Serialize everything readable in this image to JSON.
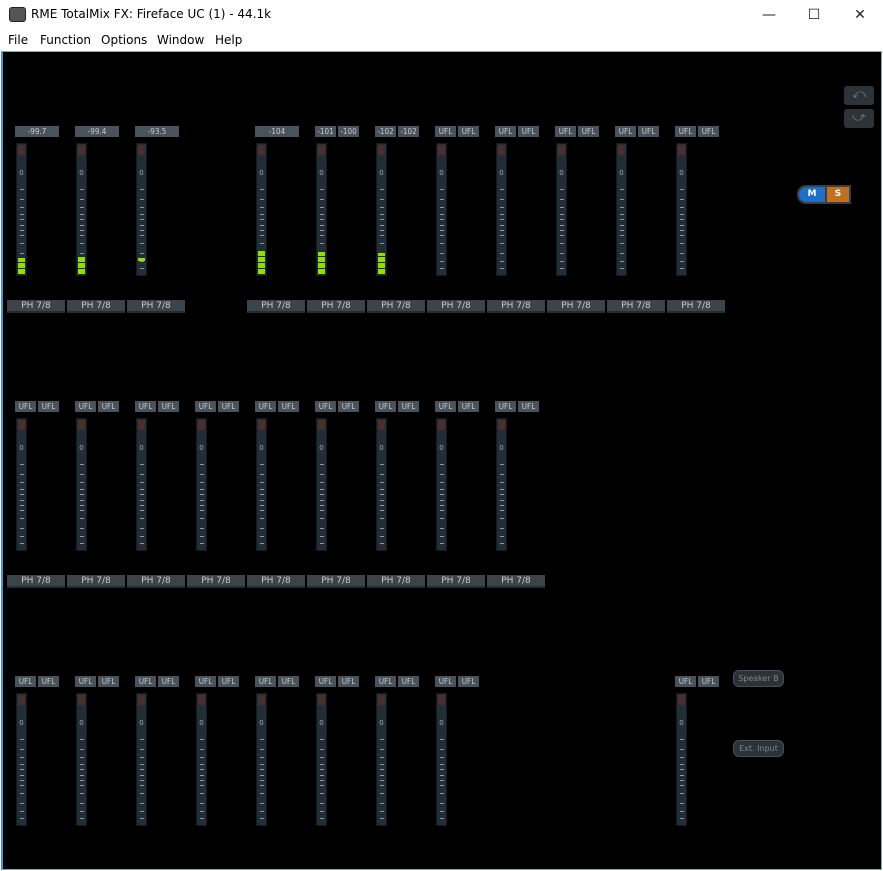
{
  "window": {
    "title": "RME TotalMix FX: Fireface UC (1) - 44.1k",
    "minimize": "—",
    "maximize": "☐",
    "close": "✕"
  },
  "menu": [
    "File",
    "Function",
    "Options",
    "Window",
    "Help"
  ],
  "meter_zero_label": "0",
  "meter_level_color": "#8fe000",
  "rows": [
    {
      "channels": [
        {
          "slot": 0,
          "labels": [
            "-99.7"
          ],
          "level": 0.12,
          "button": "PH 7/8"
        },
        {
          "slot": 1,
          "labels": [
            "-99.4"
          ],
          "level": 0.14,
          "button": "PH 7/8"
        },
        {
          "slot": 2,
          "labels": [
            "-93.5"
          ],
          "level": 0.12,
          "level_floor": 0.1,
          "button": "PH 7/8"
        },
        {
          "slot": 4,
          "labels": [
            "-104"
          ],
          "level": 0.18,
          "button": "PH 7/8"
        },
        {
          "slot": 5,
          "labels": [
            "-101",
            "-100"
          ],
          "level": 0.17,
          "button": "PH 7/8"
        },
        {
          "slot": 6,
          "labels": [
            "-102",
            "-102"
          ],
          "level": 0.16,
          "button": "PH 7/8"
        },
        {
          "slot": 7,
          "labels": [
            "UFL",
            "UFL"
          ],
          "level": 0,
          "button": "PH 7/8"
        },
        {
          "slot": 8,
          "labels": [
            "UFL",
            "UFL"
          ],
          "level": 0,
          "button": "PH 7/8"
        },
        {
          "slot": 9,
          "labels": [
            "UFL",
            "UFL"
          ],
          "level": 0,
          "button": "PH 7/8"
        },
        {
          "slot": 10,
          "labels": [
            "UFL",
            "UFL"
          ],
          "level": 0,
          "button": "PH 7/8"
        },
        {
          "slot": 11,
          "labels": [
            "UFL",
            "UFL"
          ],
          "level": 0,
          "button": "PH 7/8"
        }
      ]
    },
    {
      "channels": [
        {
          "slot": 0,
          "labels": [
            "UFL",
            "UFL"
          ],
          "level": 0,
          "button": "PH 7/8"
        },
        {
          "slot": 1,
          "labels": [
            "UFL",
            "UFL"
          ],
          "level": 0,
          "button": "PH 7/8"
        },
        {
          "slot": 2,
          "labels": [
            "UFL",
            "UFL"
          ],
          "level": 0,
          "button": "PH 7/8"
        },
        {
          "slot": 3,
          "labels": [
            "UFL",
            "UFL"
          ],
          "level": 0,
          "button": "PH 7/8"
        },
        {
          "slot": 4,
          "labels": [
            "UFL",
            "UFL"
          ],
          "level": 0,
          "button": "PH 7/8"
        },
        {
          "slot": 5,
          "labels": [
            "UFL",
            "UFL"
          ],
          "level": 0,
          "button": "PH 7/8"
        },
        {
          "slot": 6,
          "labels": [
            "UFL",
            "UFL"
          ],
          "level": 0,
          "button": "PH 7/8"
        },
        {
          "slot": 7,
          "labels": [
            "UFL",
            "UFL"
          ],
          "level": 0,
          "button": "PH 7/8"
        },
        {
          "slot": 8,
          "labels": [
            "UFL",
            "UFL"
          ],
          "level": 0,
          "button": "PH 7/8"
        }
      ]
    },
    {
      "channels": [
        {
          "slot": 0,
          "labels": [
            "UFL",
            "UFL"
          ],
          "level": 0
        },
        {
          "slot": 1,
          "labels": [
            "UFL",
            "UFL"
          ],
          "level": 0
        },
        {
          "slot": 2,
          "labels": [
            "UFL",
            "UFL"
          ],
          "level": 0
        },
        {
          "slot": 3,
          "labels": [
            "UFL",
            "UFL"
          ],
          "level": 0
        },
        {
          "slot": 4,
          "labels": [
            "UFL",
            "UFL"
          ],
          "level": 0
        },
        {
          "slot": 5,
          "labels": [
            "UFL",
            "UFL"
          ],
          "level": 0
        },
        {
          "slot": 6,
          "labels": [
            "UFL",
            "UFL"
          ],
          "level": 0
        },
        {
          "slot": 7,
          "labels": [
            "UFL",
            "UFL"
          ],
          "level": 0
        },
        {
          "slot": 11,
          "labels": [
            "UFL",
            "UFL"
          ],
          "level": 0
        }
      ]
    }
  ],
  "side": {
    "undo_icon": "undo-arrow",
    "redo_icon": "redo-arrow",
    "mute": "M",
    "solo": "S",
    "speaker_b": "Speaker B",
    "ext_input": "Ext. Input"
  }
}
